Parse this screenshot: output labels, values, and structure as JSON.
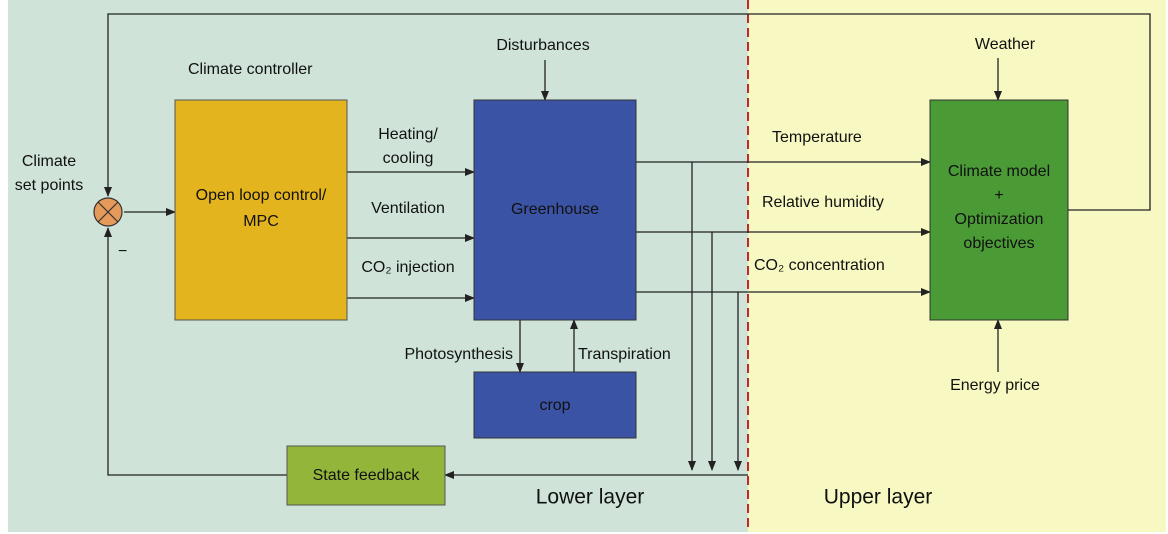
{
  "layers": {
    "lower": "Lower layer",
    "upper": "Upper layer"
  },
  "labels": {
    "climate_controller": "Climate controller",
    "disturbances": "Disturbances",
    "weather": "Weather",
    "energy_price": "Energy price",
    "set_points": [
      "Climate",
      "set points"
    ],
    "minus": "−"
  },
  "blocks": {
    "controller": [
      "Open loop control/",
      "MPC"
    ],
    "greenhouse": "Greenhouse",
    "crop": "crop",
    "feedback": "State feedback",
    "model": [
      "Climate model",
      "+",
      "Optimization",
      "objectives"
    ]
  },
  "signals": {
    "heating": [
      "Heating/",
      "cooling"
    ],
    "ventilation": "Ventilation",
    "co2_injection": "CO₂ injection",
    "temperature": "Temperature",
    "humidity": "Relative humidity",
    "co2_concentration": "CO₂ concentration",
    "photosynthesis": "Photosynthesis",
    "transpiration": "Transpiration"
  }
}
